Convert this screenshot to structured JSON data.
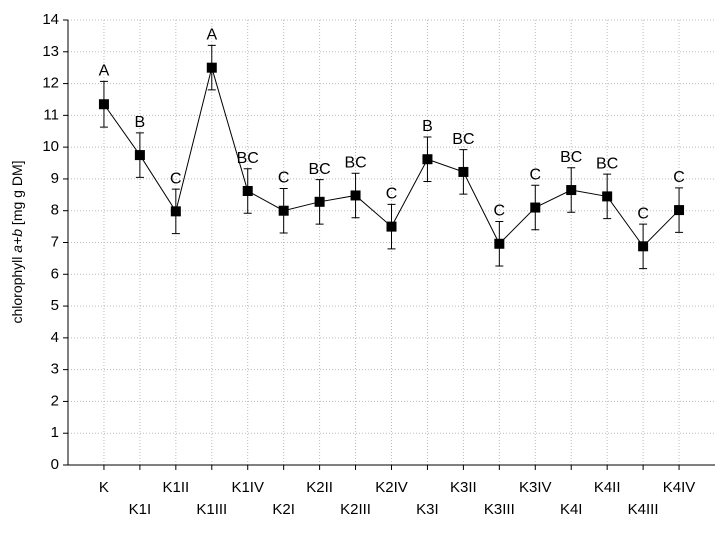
{
  "chart_data": {
    "type": "line",
    "ylabel_parts": [
      "chlorophyll ",
      "a+b",
      " [mg g DM]"
    ],
    "categories": [
      "K",
      "K1I",
      "K1II",
      "K1III",
      "K1IV",
      "K2I",
      "K2II",
      "K2III",
      "K2IV",
      "K3I",
      "K3II",
      "K3III",
      "K3IV",
      "K4I",
      "K4II",
      "K4III",
      "K4IV"
    ],
    "values": [
      11.35,
      9.75,
      7.98,
      12.5,
      8.62,
      8.0,
      8.28,
      8.48,
      7.5,
      9.62,
      9.22,
      6.96,
      8.1,
      8.65,
      8.45,
      6.88,
      8.02
    ],
    "errors": [
      0.72,
      0.7,
      0.7,
      0.7,
      0.7,
      0.7,
      0.7,
      0.7,
      0.7,
      0.7,
      0.7,
      0.7,
      0.7,
      0.7,
      0.7,
      0.7,
      0.7
    ],
    "group_letters": [
      "A",
      "B",
      "C",
      "A",
      "BC",
      "C",
      "BC",
      "BC",
      "C",
      "B",
      "BC",
      "C",
      "C",
      "BC",
      "BC",
      "C",
      "C"
    ],
    "color": "#000000",
    "ylim": [
      0,
      14
    ],
    "yticks": [
      0,
      1,
      2,
      3,
      4,
      5,
      6,
      7,
      8,
      9,
      10,
      11,
      12,
      13,
      14
    ],
    "grid": true
  }
}
